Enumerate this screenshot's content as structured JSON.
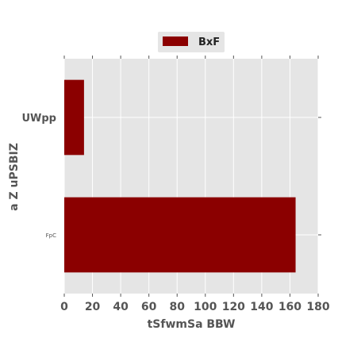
{
  "chart_data": {
    "type": "bar",
    "orientation": "horizontal",
    "categories": [
      "UWpp",
      "FpC"
    ],
    "series": [
      {
        "name": "BxF",
        "values": [
          14,
          164
        ],
        "color": "#8B0000"
      }
    ],
    "xlabel": "tSfwmSa BBW",
    "ylabel": "a Z uPSBIZ",
    "xlim": [
      0,
      180
    ],
    "xticks": [
      0,
      20,
      40,
      60,
      80,
      100,
      120,
      140,
      160,
      180
    ],
    "grid": true,
    "legend": "top-center",
    "background_color": "#E5E5E5",
    "grid_color": "#FFFFFF"
  }
}
